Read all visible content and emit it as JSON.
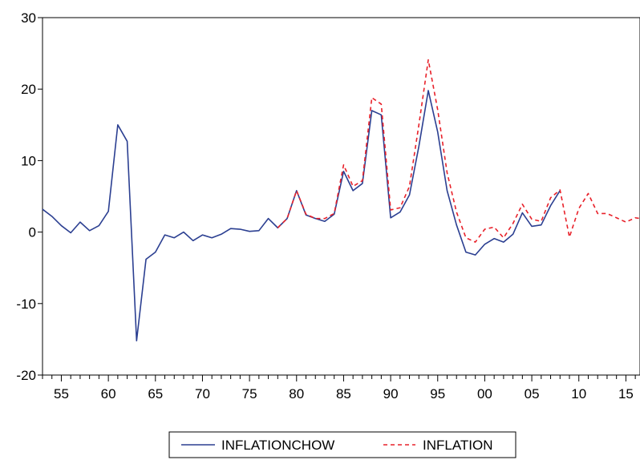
{
  "chart_data": {
    "type": "line",
    "title": "",
    "xlabel": "",
    "ylabel": "",
    "xlim": [
      1953,
      2016.5
    ],
    "ylim": [
      -20,
      30
    ],
    "y_ticks": [
      -20,
      -10,
      0,
      10,
      20,
      30
    ],
    "y_tick_labels": [
      "-20",
      "-10",
      "0",
      "10",
      "20",
      "30"
    ],
    "x_ticks": [
      1955,
      1960,
      1965,
      1970,
      1975,
      1980,
      1985,
      1990,
      1995,
      2000,
      2005,
      2010,
      2015
    ],
    "x_tick_labels": [
      "55",
      "60",
      "65",
      "70",
      "75",
      "80",
      "85",
      "90",
      "95",
      "00",
      "05",
      "10",
      "15"
    ],
    "grid": false,
    "legend_position": "bottom-center",
    "series": [
      {
        "name": "INFLATIONCHOW",
        "color": "#2b3f91",
        "style": "solid",
        "x": [
          1953,
          1954,
          1955,
          1956,
          1957,
          1958,
          1959,
          1960,
          1961,
          1962,
          1963,
          1964,
          1965,
          1966,
          1967,
          1968,
          1969,
          1970,
          1971,
          1972,
          1973,
          1974,
          1975,
          1976,
          1977,
          1978,
          1979,
          1980,
          1981,
          1982,
          1983,
          1984,
          1985,
          1986,
          1987,
          1988,
          1989,
          1990,
          1991,
          1992,
          1993,
          1994,
          1995,
          1996,
          1997,
          1998,
          1999,
          2000,
          2001,
          2002,
          2003,
          2004,
          2005,
          2006,
          2007,
          2008
        ],
        "values": [
          3.2,
          2.2,
          0.9,
          -0.1,
          1.4,
          0.2,
          0.9,
          2.9,
          15.0,
          12.7,
          -15.2,
          -3.8,
          -2.8,
          -0.4,
          -0.8,
          0.0,
          -1.2,
          -0.4,
          -0.8,
          -0.3,
          0.5,
          0.4,
          0.1,
          0.2,
          1.9,
          0.6,
          1.9,
          5.8,
          2.4,
          1.9,
          1.5,
          2.5,
          8.5,
          5.8,
          6.8,
          17.0,
          16.4,
          2.0,
          2.8,
          5.2,
          12.0,
          19.8,
          14.0,
          5.8,
          1.0,
          -2.8,
          -3.2,
          -1.7,
          -0.9,
          -1.4,
          -0.3,
          2.7,
          0.8,
          1.0,
          3.7,
          5.8
        ]
      },
      {
        "name": "INFLATION",
        "color": "#e8212a",
        "style": "dashed",
        "x": [
          1978,
          1979,
          1980,
          1981,
          1982,
          1983,
          1984,
          1985,
          1986,
          1987,
          1988,
          1989,
          1990,
          1991,
          1992,
          1993,
          1994,
          1995,
          1996,
          1997,
          1998,
          1999,
          2000,
          2001,
          2002,
          2003,
          2004,
          2005,
          2006,
          2007,
          2008,
          2009,
          2010,
          2011,
          2012,
          2013,
          2014,
          2015,
          2016,
          2016.5
        ],
        "values": [
          0.6,
          1.9,
          5.8,
          2.5,
          1.9,
          1.9,
          2.6,
          9.4,
          6.4,
          7.2,
          18.8,
          17.9,
          3.1,
          3.4,
          6.4,
          15.0,
          24.1,
          17.1,
          8.3,
          2.8,
          -0.8,
          -1.4,
          0.4,
          0.7,
          -0.8,
          1.2,
          3.9,
          1.8,
          1.5,
          4.8,
          5.9,
          -0.7,
          3.3,
          5.4,
          2.6,
          2.6,
          2.0,
          1.4,
          2.0,
          1.9
        ]
      }
    ]
  }
}
